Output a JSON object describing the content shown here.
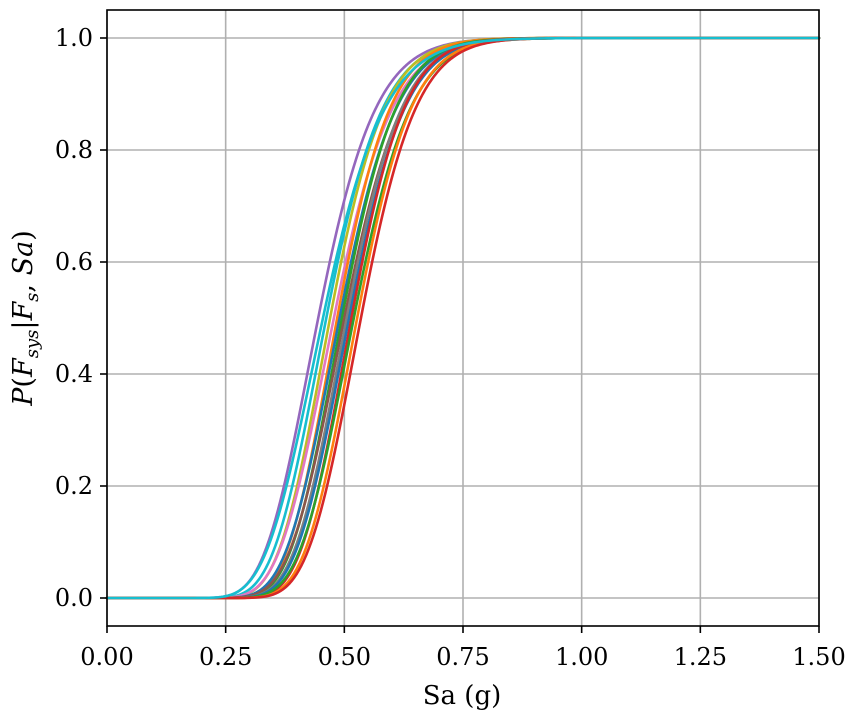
{
  "chart_data": {
    "type": "line",
    "title": "",
    "xlabel": "Sa (g)",
    "ylabel": "P(F_sys|F_s, Sa)",
    "xlim": [
      0,
      1.5
    ],
    "ylim": [
      -0.05,
      1.05
    ],
    "xticks": [
      0.0,
      0.25,
      0.5,
      0.75,
      1.0,
      1.25,
      1.5
    ],
    "xtick_labels": [
      "0.00",
      "0.25",
      "0.50",
      "0.75",
      "1.00",
      "1.25",
      "1.50"
    ],
    "yticks": [
      0.0,
      0.2,
      0.4,
      0.6,
      0.8,
      1.0
    ],
    "ytick_labels": [
      "0.0",
      "0.2",
      "0.4",
      "0.6",
      "0.8",
      "1.0"
    ],
    "grid": true,
    "legend": "none",
    "curve_model": "lognormal CDF",
    "series": [
      {
        "color": "#9467bd",
        "median": 0.445,
        "dispersion": 0.21
      },
      {
        "color": "#17becf",
        "median": 0.462,
        "dispersion": 0.2
      },
      {
        "color": "#bcbd22",
        "median": 0.47,
        "dispersion": 0.19
      },
      {
        "color": "#e377c2",
        "median": 0.478,
        "dispersion": 0.2
      },
      {
        "color": "#ff7f0e",
        "median": 0.485,
        "dispersion": 0.18
      },
      {
        "color": "#1f77b4",
        "median": 0.49,
        "dispersion": 0.19
      },
      {
        "color": "#2ca02c",
        "median": 0.495,
        "dispersion": 0.18
      },
      {
        "color": "#8c564b",
        "median": 0.5,
        "dispersion": 0.19
      },
      {
        "color": "#7f7f7f",
        "median": 0.505,
        "dispersion": 0.18
      },
      {
        "color": "#1f77b4",
        "median": 0.51,
        "dispersion": 0.18
      },
      {
        "color": "#d62728",
        "median": 0.515,
        "dispersion": 0.17
      },
      {
        "color": "#2ca02c",
        "median": 0.52,
        "dispersion": 0.18
      },
      {
        "color": "#ff7f0e",
        "median": 0.527,
        "dispersion": 0.17
      },
      {
        "color": "#d62728",
        "median": 0.535,
        "dispersion": 0.17
      },
      {
        "color": "#17becf",
        "median": 0.455,
        "dispersion": 0.22
      }
    ]
  }
}
